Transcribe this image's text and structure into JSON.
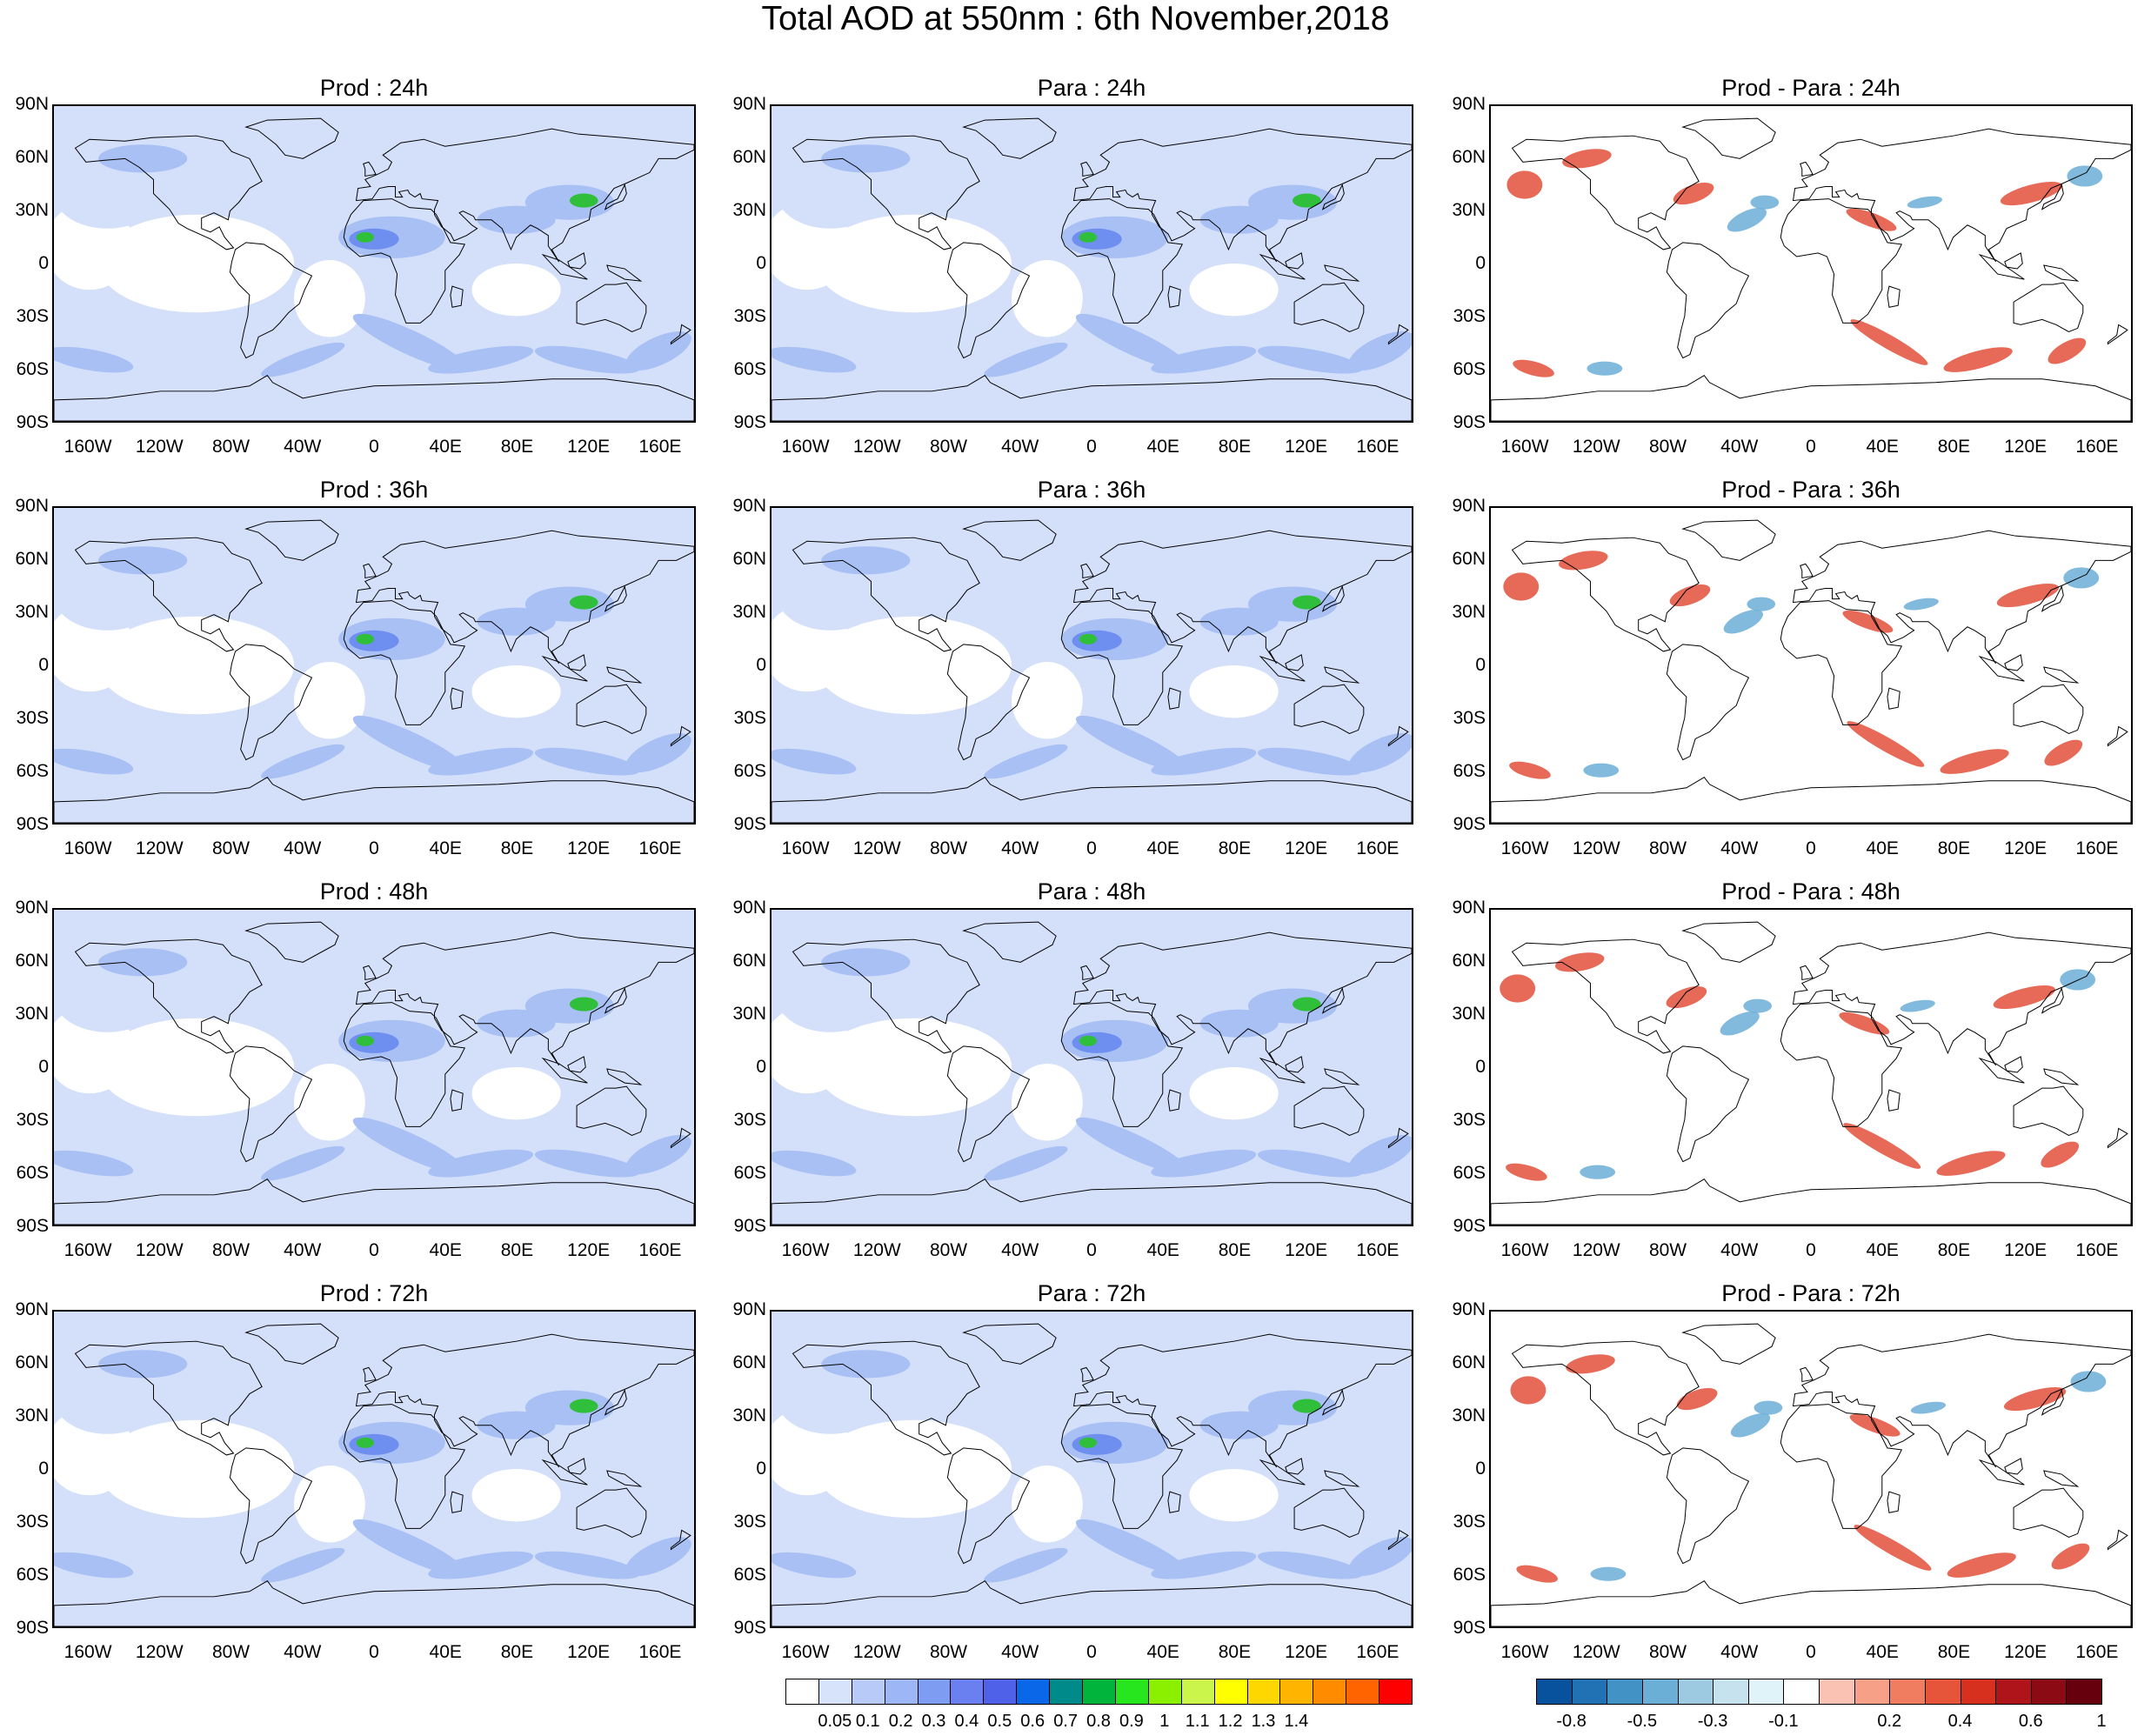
{
  "title": "Total AOD at 550nm : 6th November,2018",
  "panels": [
    {
      "title": "Prod : 24h",
      "kind": "aod"
    },
    {
      "title": "Para : 24h",
      "kind": "aod"
    },
    {
      "title": "Prod - Para : 24h",
      "kind": "diff"
    },
    {
      "title": "Prod : 36h",
      "kind": "aod"
    },
    {
      "title": "Para : 36h",
      "kind": "aod"
    },
    {
      "title": "Prod - Para : 36h",
      "kind": "diff"
    },
    {
      "title": "Prod : 48h",
      "kind": "aod"
    },
    {
      "title": "Para : 48h",
      "kind": "aod"
    },
    {
      "title": "Prod - Para : 48h",
      "kind": "diff"
    },
    {
      "title": "Prod : 72h",
      "kind": "aod"
    },
    {
      "title": "Para : 72h",
      "kind": "aod"
    },
    {
      "title": "Prod - Para : 72h",
      "kind": "diff"
    }
  ],
  "lat_labels": [
    "90N",
    "60N",
    "30N",
    "0",
    "30S",
    "60S",
    "90S"
  ],
  "lon_labels": [
    "160W",
    "120W",
    "80W",
    "40W",
    "0",
    "40E",
    "80E",
    "120E",
    "160E"
  ],
  "aod_colorbar": {
    "colors": [
      "#ffffff",
      "#d7e2fb",
      "#b8cbf8",
      "#9cb6f6",
      "#7f9cf3",
      "#6a7ff0",
      "#4e61e8",
      "#0a68e8",
      "#008a8a",
      "#00b43c",
      "#27e61e",
      "#8bf000",
      "#cbf54a",
      "#ffff00",
      "#ffd700",
      "#ffb400",
      "#ff8c00",
      "#ff6400",
      "#ff0000"
    ],
    "labels": [
      "0.05",
      "0.1",
      "0.2",
      "0.3",
      "0.4",
      "0.5",
      "0.6",
      "0.7",
      "0.8",
      "0.9",
      "1",
      "1.1",
      "1.2",
      "1.3",
      "1.4"
    ]
  },
  "diff_colorbar": {
    "colors": [
      "#08519c",
      "#2171b5",
      "#4292c6",
      "#6baed6",
      "#9ecae1",
      "#c6e2ef",
      "#e0f3f8",
      "#ffffff",
      "#f9c2b2",
      "#f6a088",
      "#f07d60",
      "#e6553a",
      "#d7301f",
      "#b0141b",
      "#8b0a13",
      "#67000d"
    ],
    "labels": [
      "-0.8",
      "-0.5",
      "-0.3",
      "-0.1",
      "0.2",
      "0.4",
      "0.6",
      "1"
    ]
  },
  "colors": {
    "aod_light": "#d4e0fa",
    "aod_mid": "#a9c0f5",
    "aod_high": "#6f8ff0",
    "dust_core": "#2fbf3a",
    "diff_pos": "#e2503a",
    "diff_neg": "#6baed6",
    "coast": "#000000"
  }
}
